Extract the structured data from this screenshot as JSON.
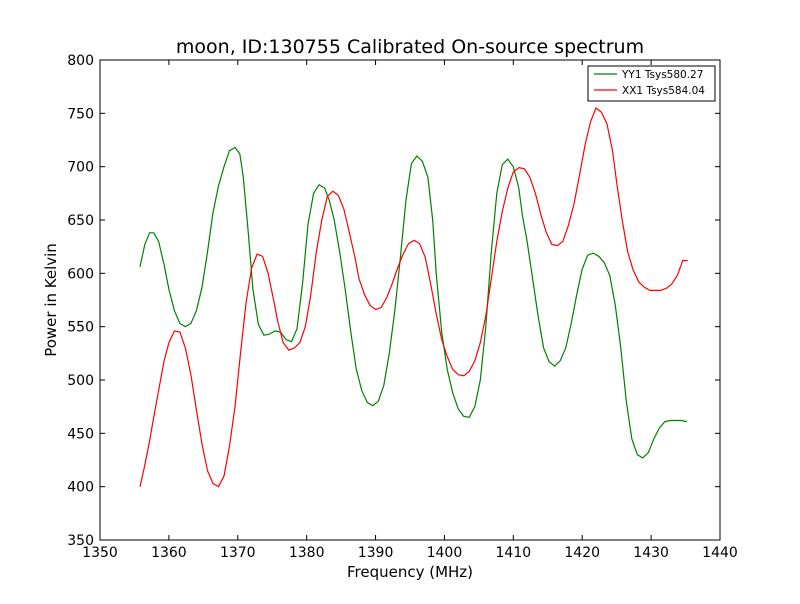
{
  "chart_data": {
    "type": "line",
    "title": "moon, ID:130755 Calibrated On-source spectrum",
    "xlabel": "Frequency (MHz)",
    "ylabel": "Power in Kelvin",
    "xlim": [
      1350,
      1440
    ],
    "ylim": [
      350,
      800
    ],
    "xticks": [
      1350,
      1360,
      1370,
      1380,
      1390,
      1400,
      1410,
      1420,
      1430,
      1440
    ],
    "yticks": [
      350,
      400,
      450,
      500,
      550,
      600,
      650,
      700,
      750,
      800
    ],
    "grid": false,
    "legend_position": "top-right",
    "series": [
      {
        "name": "YY1 Tsys580.27",
        "color": "#008000",
        "x": [
          1355.8,
          1356.5,
          1357.2,
          1357.8,
          1358.5,
          1359.3,
          1360.0,
          1360.8,
          1361.6,
          1362.4,
          1363.2,
          1364.0,
          1364.8,
          1365.6,
          1366.4,
          1367.2,
          1368.0,
          1368.8,
          1369.6,
          1370.3,
          1370.8,
          1371.5,
          1372.2,
          1373.0,
          1373.8,
          1374.6,
          1375.4,
          1376.2,
          1377.0,
          1377.8,
          1378.6,
          1379.4,
          1380.2,
          1381.0,
          1381.8,
          1382.6,
          1383.3,
          1384.0,
          1384.8,
          1385.6,
          1386.4,
          1387.2,
          1388.0,
          1388.8,
          1389.6,
          1390.4,
          1391.2,
          1392.0,
          1392.8,
          1393.6,
          1394.4,
          1395.2,
          1396.0,
          1396.8,
          1397.6,
          1398.3,
          1398.8,
          1399.6,
          1400.4,
          1401.2,
          1402.0,
          1402.8,
          1403.6,
          1404.4,
          1405.2,
          1406.0,
          1406.8,
          1407.6,
          1408.4,
          1409.2,
          1410.0,
          1410.8,
          1411.3,
          1412.0,
          1412.8,
          1413.6,
          1414.4,
          1415.2,
          1416.0,
          1416.8,
          1417.6,
          1418.4,
          1419.2,
          1420.0,
          1420.8,
          1421.6,
          1422.4,
          1423.2,
          1424.0,
          1424.8,
          1425.6,
          1426.4,
          1427.2,
          1428.0,
          1428.8,
          1429.6,
          1430.4,
          1431.2,
          1432.0,
          1432.8,
          1433.6,
          1434.4,
          1435.2
        ],
        "y": [
          606,
          627,
          638,
          638,
          630,
          608,
          585,
          565,
          553,
          550,
          553,
          565,
          587,
          620,
          657,
          682,
          700,
          715,
          718,
          712,
          690,
          640,
          585,
          552,
          542,
          543,
          546,
          545,
          538,
          536,
          548,
          590,
          646,
          675,
          683,
          680,
          668,
          650,
          620,
          585,
          545,
          510,
          490,
          479,
          476,
          480,
          495,
          525,
          565,
          615,
          668,
          703,
          710,
          705,
          690,
          650,
          600,
          545,
          510,
          488,
          473,
          466,
          465,
          475,
          500,
          550,
          620,
          675,
          702,
          707,
          700,
          680,
          655,
          630,
          595,
          560,
          530,
          517,
          513,
          518,
          530,
          553,
          580,
          604,
          617,
          619,
          616,
          610,
          598,
          570,
          530,
          480,
          445,
          430,
          427,
          432,
          445,
          455,
          461,
          462,
          462,
          462,
          461
        ]
      },
      {
        "name": "XX1 Tsys584.04",
        "color": "#ff0000",
        "x": [
          1355.8,
          1356.5,
          1357.2,
          1357.8,
          1358.5,
          1359.3,
          1360.0,
          1360.8,
          1361.6,
          1362.4,
          1363.2,
          1364.0,
          1364.8,
          1365.6,
          1366.4,
          1367.2,
          1368.0,
          1368.8,
          1369.6,
          1370.4,
          1371.2,
          1372.0,
          1372.8,
          1373.6,
          1374.4,
          1375.2,
          1375.8,
          1376.6,
          1377.4,
          1378.2,
          1379.0,
          1379.8,
          1380.6,
          1381.4,
          1382.2,
          1383.0,
          1383.8,
          1384.6,
          1385.4,
          1386.2,
          1387.0,
          1387.6,
          1388.4,
          1389.2,
          1390.0,
          1390.8,
          1391.6,
          1392.4,
          1393.2,
          1394.0,
          1394.8,
          1395.6,
          1396.4,
          1397.2,
          1398.0,
          1398.8,
          1399.6,
          1400.4,
          1401.2,
          1402.0,
          1402.8,
          1403.6,
          1404.4,
          1405.2,
          1406.0,
          1406.8,
          1407.6,
          1408.4,
          1409.2,
          1410.0,
          1410.8,
          1411.6,
          1412.4,
          1413.2,
          1414.0,
          1414.8,
          1415.6,
          1416.4,
          1417.2,
          1418.0,
          1418.8,
          1419.6,
          1420.4,
          1421.2,
          1422.0,
          1422.8,
          1423.6,
          1424.4,
          1425.0,
          1425.8,
          1426.6,
          1427.4,
          1428.2,
          1429.0,
          1429.8,
          1430.6,
          1431.4,
          1432.2,
          1433.0,
          1433.8,
          1434.6,
          1435.3
        ],
        "y": [
          400,
          420,
          443,
          465,
          490,
          518,
          535,
          546,
          545,
          530,
          505,
          472,
          440,
          415,
          403,
          400,
          410,
          438,
          475,
          525,
          572,
          605,
          618,
          616,
          600,
          575,
          555,
          535,
          528,
          530,
          535,
          550,
          580,
          620,
          650,
          672,
          677,
          673,
          660,
          638,
          615,
          595,
          580,
          570,
          566,
          568,
          577,
          590,
          605,
          618,
          628,
          631,
          628,
          615,
          590,
          562,
          538,
          522,
          510,
          505,
          504,
          508,
          518,
          535,
          560,
          595,
          630,
          658,
          680,
          695,
          699,
          698,
          690,
          675,
          655,
          638,
          627,
          626,
          630,
          645,
          665,
          692,
          720,
          742,
          755,
          751,
          740,
          715,
          685,
          650,
          620,
          603,
          592,
          587,
          584,
          584,
          584,
          586,
          590,
          598,
          612,
          612
        ]
      }
    ]
  }
}
